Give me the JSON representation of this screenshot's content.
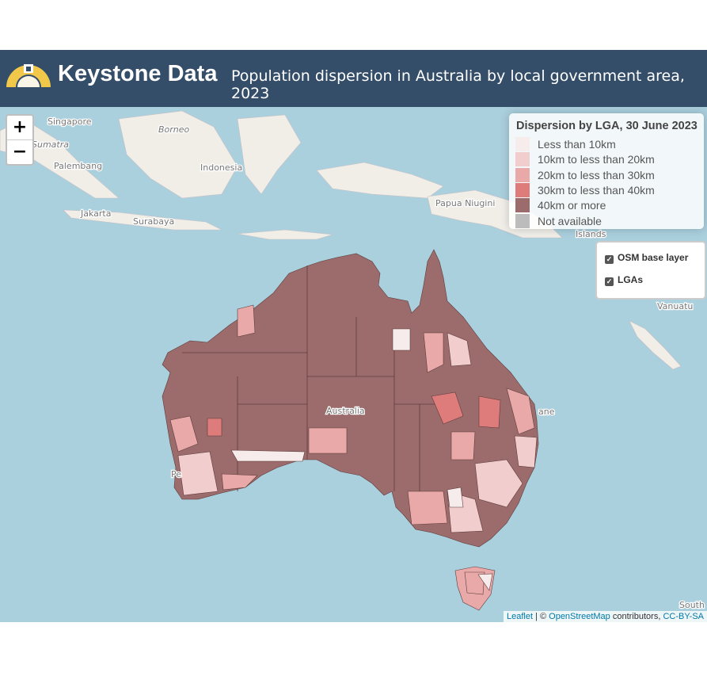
{
  "header": {
    "title": "Keystone Data",
    "subtitle": "Population dispersion in Australia by local government area, 2023"
  },
  "zoom": {
    "in": "+",
    "out": "−"
  },
  "legend": {
    "title": "Dispersion by LGA, 30 June 2023",
    "items": [
      {
        "label": "Less than 10km",
        "color": "#f7ecec"
      },
      {
        "label": "10km to less than 20km",
        "color": "#f1cdcd"
      },
      {
        "label": "20km to less than 30km",
        "color": "#e9a9a9"
      },
      {
        "label": "30km to less than 40km",
        "color": "#de7c7c"
      },
      {
        "label": "40km or more",
        "color": "#9c6b6b"
      },
      {
        "label": "Not available",
        "color": "#bcbcbc"
      }
    ]
  },
  "layers": {
    "items": [
      {
        "label": "OSM base layer",
        "checked": true
      },
      {
        "label": "LGAs",
        "checked": true
      }
    ]
  },
  "map": {
    "labels": [
      "Singapore",
      "Borneo",
      "Sumatra",
      "Palembang",
      "Indonesia",
      "Jakarta",
      "Surabaya",
      "Papua Niugini",
      "Islands",
      "Vanuatu",
      "Australia",
      "Pe",
      "ane",
      "South N"
    ]
  },
  "attribution": {
    "leaflet": "Leaflet",
    "sep": " | © ",
    "osm": "OpenStreetMap",
    "contributors": " contributors, ",
    "license": "CC-BY-SA"
  }
}
